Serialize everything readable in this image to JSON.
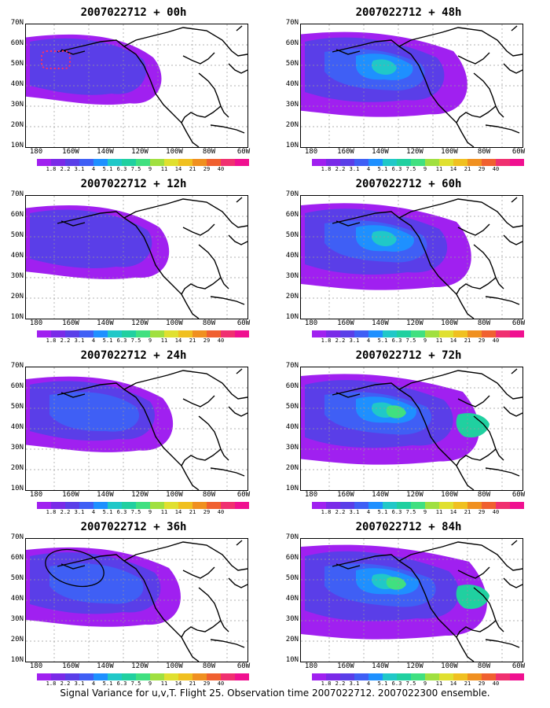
{
  "panels": [
    {
      "title": "2007022712 + 00h",
      "intensity": 0.15
    },
    {
      "title": "2007022712 + 48h",
      "intensity": 0.55
    },
    {
      "title": "2007022712 + 12h",
      "intensity": 0.25
    },
    {
      "title": "2007022712 + 60h",
      "intensity": 0.6
    },
    {
      "title": "2007022712 + 24h",
      "intensity": 0.3
    },
    {
      "title": "2007022712 + 72h",
      "intensity": 0.7
    },
    {
      "title": "2007022712 + 36h",
      "intensity": 0.4
    },
    {
      "title": "2007022712 + 84h",
      "intensity": 0.8
    }
  ],
  "lat_labels": [
    "70N",
    "60N",
    "50N",
    "40N",
    "30N",
    "20N",
    "10N"
  ],
  "lon_labels": [
    "180",
    "160W",
    "140W",
    "120W",
    "100W",
    "80W",
    "60W"
  ],
  "colorbar": {
    "colors": [
      "#a020f0",
      "#7a2ae8",
      "#5a3ee8",
      "#3f5ff5",
      "#1e90ff",
      "#20c8c8",
      "#20d0a0",
      "#40e080",
      "#a0e040",
      "#e0e030",
      "#f0c020",
      "#f09020",
      "#f06030",
      "#f03070",
      "#f01090"
    ],
    "labels": [
      "1.8",
      "2.2",
      "3.1",
      "4",
      "5.1",
      "6.3",
      "7.5",
      "9",
      "11",
      "14",
      "21",
      "29",
      "40"
    ]
  },
  "caption": "Signal Variance for u,v,T. Flight 25. Observation time 2007022712. 2007022300 ensemble."
}
